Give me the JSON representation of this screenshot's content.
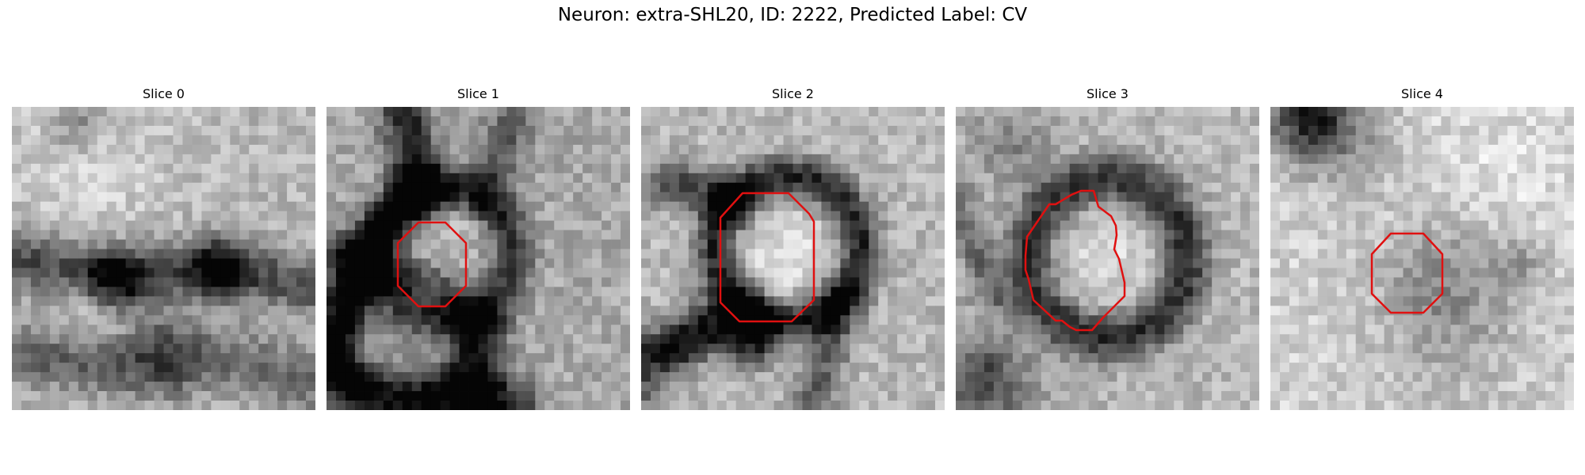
{
  "figure": {
    "title": "Neuron: extra-SHL20, ID: 2222, Predicted Label: CV",
    "contour_color": "#e01010"
  },
  "panels": [
    {
      "title": "Slice 0",
      "has_contour": false
    },
    {
      "title": "Slice 1",
      "has_contour": true
    },
    {
      "title": "Slice 2",
      "has_contour": true
    },
    {
      "title": "Slice 3",
      "has_contour": true
    },
    {
      "title": "Slice 4",
      "has_contour": true
    }
  ]
}
